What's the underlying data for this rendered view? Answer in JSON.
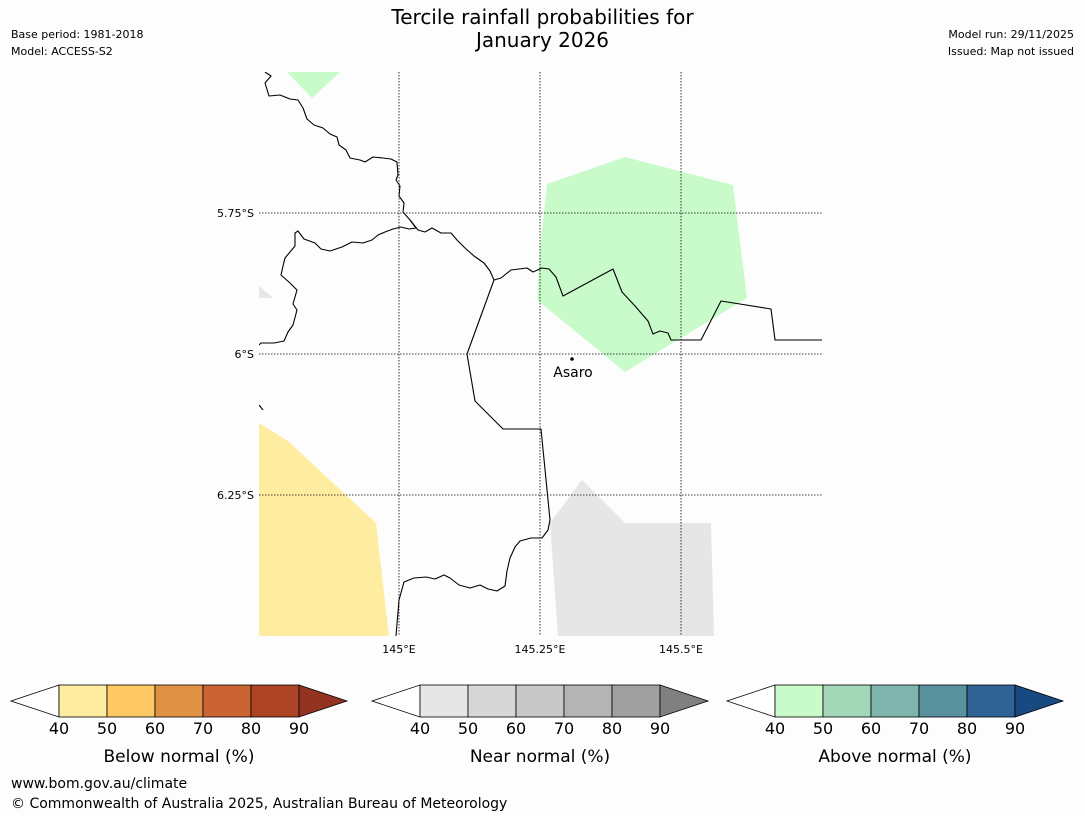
{
  "header": {
    "title_line1": "Tercile rainfall probabilities for",
    "title_line2": "January 2026",
    "base_period": "Base period: 1981-2018",
    "model": "Model: ACCESS-S2",
    "model_run": "Model run: 29/11/2025",
    "issued": "Issued: Map not issued"
  },
  "map": {
    "lat_labels": [
      "5.75°S",
      "6°S",
      "6.25°S"
    ],
    "lon_labels": [
      "145°E",
      "145.25°E",
      "145.5°E"
    ],
    "place": {
      "name": "Asaro"
    },
    "colors": {
      "above_50": "#c9fbca",
      "below_50": "#feeda0",
      "near_50": "#e6e6e6",
      "border": "#000000"
    }
  },
  "legends": [
    {
      "title": "Below normal (%)",
      "ticks": [
        "40",
        "50",
        "60",
        "70",
        "80",
        "90"
      ],
      "colors": [
        "#ffffff",
        "#feeda0",
        "#fec965",
        "#e19143",
        "#cb6433",
        "#ad4426",
        "#933322"
      ]
    },
    {
      "title": "Near normal (%)",
      "ticks": [
        "40",
        "50",
        "60",
        "70",
        "80",
        "90"
      ],
      "colors": [
        "#ffffff",
        "#e6e6e6",
        "#d7d7d7",
        "#c8c8c8",
        "#b4b4b4",
        "#a0a0a0",
        "#808080"
      ]
    },
    {
      "title": "Above normal (%)",
      "ticks": [
        "40",
        "50",
        "60",
        "70",
        "80",
        "90"
      ],
      "colors": [
        "#ffffff",
        "#c9fbca",
        "#a3d7b7",
        "#7fb5ad",
        "#5a919f",
        "#2e6295",
        "#174a80"
      ]
    }
  ],
  "footer": {
    "url": "www.bom.gov.au/climate",
    "copyright": "© Commonwealth of Australia 2025, Australian Bureau of Meteorology"
  }
}
